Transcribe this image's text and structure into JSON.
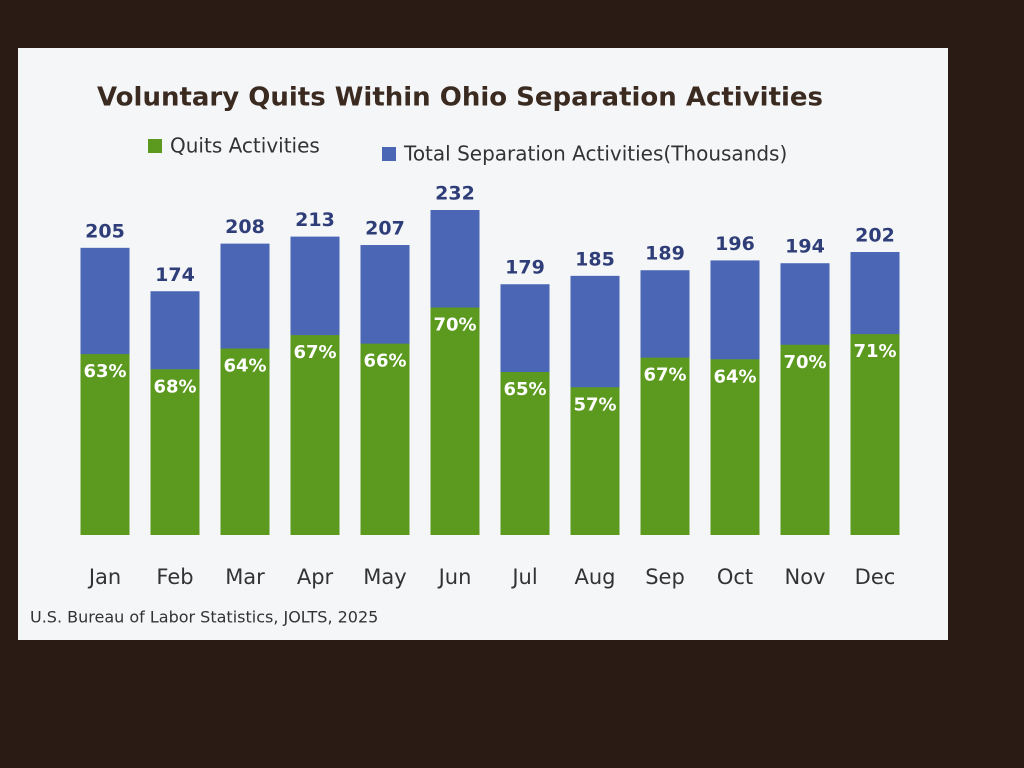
{
  "chart_data": {
    "type": "bar",
    "title": "Voluntary Quits Within Ohio Separation Activities",
    "categories": [
      "Jan",
      "Feb",
      "Mar",
      "Apr",
      "May",
      "Jun",
      "Jul",
      "Aug",
      "Sep",
      "Oct",
      "Nov",
      "Dec"
    ],
    "series": [
      {
        "name": "Quits Activities",
        "color": "#5b9a1f",
        "values": [
          63,
          68,
          64,
          67,
          66,
          70,
          65,
          57,
          67,
          64,
          70,
          71
        ],
        "value_labels": [
          "63%",
          "68%",
          "64%",
          "67%",
          "66%",
          "70%",
          "65%",
          "57%",
          "67%",
          "64%",
          "70%",
          "71%"
        ]
      },
      {
        "name": "Total Separation Activities(Thousands)",
        "color": "#4a66b4",
        "values": [
          205,
          174,
          208,
          213,
          207,
          232,
          179,
          185,
          189,
          196,
          194,
          202
        ]
      }
    ],
    "source": "U.S. Bureau of Labor Statistics, JOLTS, 2025"
  }
}
